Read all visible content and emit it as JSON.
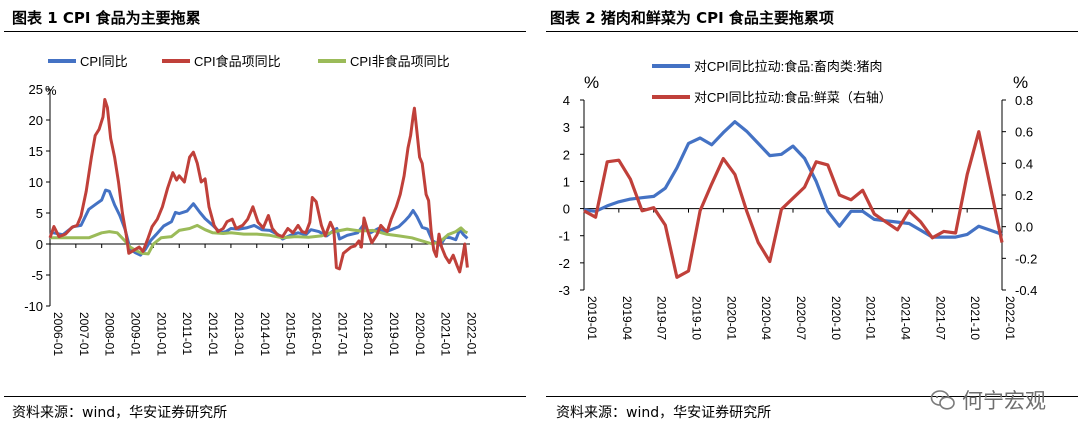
{
  "figure1": {
    "title": "图表 1 CPI 食品为主要拖累",
    "source": "资料来源：wind，华安证券研究所"
  },
  "figure2": {
    "title": "图表 2  猪肉和鲜菜为 CPI 食品主要拖累项",
    "source": "资料来源：wind，华安证券研究所"
  },
  "watermark": "何宁宏观",
  "colors": {
    "blue": "#4472C4",
    "red": "#C0403A",
    "green": "#9BBB59"
  },
  "chart_data": [
    {
      "type": "line",
      "title": "图表 1 CPI 食品为主要拖累",
      "ylabel": "%",
      "ylim": [
        -10,
        25
      ],
      "yticks": [
        -10,
        -5,
        0,
        5,
        10,
        15,
        20,
        25
      ],
      "xlim": [
        2006.0,
        2022.25
      ],
      "xticks": [
        "2006-01",
        "2007-01",
        "2008-01",
        "2009-01",
        "2010-01",
        "2011-01",
        "2012-01",
        "2013-01",
        "2014-01",
        "2015-01",
        "2016-01",
        "2017-01",
        "2018-01",
        "2019-01",
        "2020-01",
        "2021-01",
        "2022-01"
      ],
      "legend": "top",
      "series": [
        {
          "name": "CPI同比",
          "color": "blue",
          "points": [
            [
              2006.0,
              1.9
            ],
            [
              2006.5,
              1.5
            ],
            [
              2006.9,
              2.8
            ],
            [
              2007.2,
              3.0
            ],
            [
              2007.5,
              5.6
            ],
            [
              2007.8,
              6.5
            ],
            [
              2008.0,
              7.1
            ],
            [
              2008.15,
              8.7
            ],
            [
              2008.3,
              8.5
            ],
            [
              2008.5,
              6.3
            ],
            [
              2008.7,
              4.6
            ],
            [
              2008.9,
              2.4
            ],
            [
              2009.1,
              -0.8
            ],
            [
              2009.3,
              -1.4
            ],
            [
              2009.5,
              -1.8
            ],
            [
              2009.7,
              -0.8
            ],
            [
              2009.9,
              0.6
            ],
            [
              2010.1,
              1.5
            ],
            [
              2010.4,
              2.9
            ],
            [
              2010.7,
              3.6
            ],
            [
              2010.85,
              5.1
            ],
            [
              2011.0,
              4.9
            ],
            [
              2011.3,
              5.3
            ],
            [
              2011.55,
              6.5
            ],
            [
              2011.8,
              5.1
            ],
            [
              2012.0,
              4.1
            ],
            [
              2012.3,
              3.0
            ],
            [
              2012.6,
              1.8
            ],
            [
              2012.8,
              2.0
            ],
            [
              2013.0,
              2.5
            ],
            [
              2013.3,
              2.4
            ],
            [
              2013.6,
              2.6
            ],
            [
              2013.9,
              3.0
            ],
            [
              2014.2,
              2.3
            ],
            [
              2014.5,
              2.2
            ],
            [
              2014.8,
              1.6
            ],
            [
              2015.0,
              0.8
            ],
            [
              2015.3,
              1.4
            ],
            [
              2015.6,
              1.8
            ],
            [
              2015.9,
              1.5
            ],
            [
              2016.1,
              2.3
            ],
            [
              2016.4,
              2.0
            ],
            [
              2016.7,
              1.3
            ],
            [
              2016.95,
              2.1
            ],
            [
              2017.1,
              2.5
            ],
            [
              2017.2,
              0.8
            ],
            [
              2017.5,
              1.4
            ],
            [
              2017.9,
              1.8
            ],
            [
              2018.1,
              2.9
            ],
            [
              2018.4,
              1.8
            ],
            [
              2018.7,
              2.5
            ],
            [
              2018.95,
              1.9
            ],
            [
              2019.2,
              2.3
            ],
            [
              2019.5,
              2.8
            ],
            [
              2019.75,
              3.8
            ],
            [
              2019.9,
              4.5
            ],
            [
              2020.05,
              5.4
            ],
            [
              2020.2,
              4.4
            ],
            [
              2020.4,
              2.7
            ],
            [
              2020.6,
              2.4
            ],
            [
              2020.8,
              0.5
            ],
            [
              2020.95,
              0.2
            ],
            [
              2021.1,
              -0.2
            ],
            [
              2021.3,
              1.1
            ],
            [
              2021.5,
              1.0
            ],
            [
              2021.7,
              0.7
            ],
            [
              2021.85,
              2.3
            ],
            [
              2022.0,
              1.5
            ],
            [
              2022.15,
              0.9
            ]
          ]
        },
        {
          "name": "CPI食品项同比",
          "color": "red",
          "points": [
            [
              2006.0,
              1.0
            ],
            [
              2006.15,
              2.8
            ],
            [
              2006.35,
              1.2
            ],
            [
              2006.6,
              1.6
            ],
            [
              2006.85,
              2.7
            ],
            [
              2007.05,
              3.0
            ],
            [
              2007.2,
              4.5
            ],
            [
              2007.4,
              8.5
            ],
            [
              2007.6,
              14.0
            ],
            [
              2007.75,
              17.5
            ],
            [
              2007.9,
              18.5
            ],
            [
              2008.05,
              20.5
            ],
            [
              2008.12,
              23.3
            ],
            [
              2008.22,
              22.0
            ],
            [
              2008.35,
              17.0
            ],
            [
              2008.5,
              14.0
            ],
            [
              2008.65,
              10.0
            ],
            [
              2008.8,
              5.0
            ],
            [
              2008.95,
              1.5
            ],
            [
              2009.05,
              -1.5
            ],
            [
              2009.25,
              -1.0
            ],
            [
              2009.45,
              -0.5
            ],
            [
              2009.6,
              -1.2
            ],
            [
              2009.8,
              1.0
            ],
            [
              2009.95,
              2.8
            ],
            [
              2010.15,
              4.0
            ],
            [
              2010.35,
              6.0
            ],
            [
              2010.55,
              9.0
            ],
            [
              2010.75,
              11.5
            ],
            [
              2010.9,
              10.3
            ],
            [
              2011.0,
              11.0
            ],
            [
              2011.2,
              10.0
            ],
            [
              2011.4,
              14.0
            ],
            [
              2011.55,
              14.8
            ],
            [
              2011.7,
              13.0
            ],
            [
              2011.85,
              10.0
            ],
            [
              2012.0,
              10.5
            ],
            [
              2012.15,
              6.0
            ],
            [
              2012.35,
              3.0
            ],
            [
              2012.5,
              2.0
            ],
            [
              2012.7,
              2.5
            ],
            [
              2012.85,
              3.6
            ],
            [
              2013.05,
              4.0
            ],
            [
              2013.2,
              2.5
            ],
            [
              2013.45,
              3.0
            ],
            [
              2013.65,
              4.0
            ],
            [
              2013.85,
              6.0
            ],
            [
              2014.05,
              3.5
            ],
            [
              2014.25,
              2.6
            ],
            [
              2014.45,
              4.6
            ],
            [
              2014.6,
              2.5
            ],
            [
              2014.8,
              1.5
            ],
            [
              2015.0,
              1.2
            ],
            [
              2015.2,
              2.5
            ],
            [
              2015.4,
              1.8
            ],
            [
              2015.6,
              3.0
            ],
            [
              2015.75,
              2.0
            ],
            [
              2015.9,
              1.8
            ],
            [
              2016.05,
              3.5
            ],
            [
              2016.15,
              7.5
            ],
            [
              2016.3,
              6.8
            ],
            [
              2016.5,
              3.0
            ],
            [
              2016.65,
              1.3
            ],
            [
              2016.85,
              3.5
            ],
            [
              2016.98,
              2.3
            ],
            [
              2017.08,
              -3.8
            ],
            [
              2017.2,
              -4.0
            ],
            [
              2017.35,
              -1.5
            ],
            [
              2017.5,
              -1.0
            ],
            [
              2017.65,
              -0.5
            ],
            [
              2017.8,
              -0.3
            ],
            [
              2017.95,
              0.5
            ],
            [
              2018.05,
              -0.5
            ],
            [
              2018.15,
              4.2
            ],
            [
              2018.3,
              2.0
            ],
            [
              2018.45,
              0.2
            ],
            [
              2018.65,
              1.5
            ],
            [
              2018.8,
              3.0
            ],
            [
              2018.95,
              2.3
            ],
            [
              2019.05,
              2.0
            ],
            [
              2019.2,
              4.0
            ],
            [
              2019.4,
              6.0
            ],
            [
              2019.55,
              8.0
            ],
            [
              2019.7,
              11.0
            ],
            [
              2019.85,
              15.5
            ],
            [
              2019.95,
              17.5
            ],
            [
              2020.05,
              20.6
            ],
            [
              2020.1,
              21.9
            ],
            [
              2020.2,
              18.0
            ],
            [
              2020.3,
              14.0
            ],
            [
              2020.4,
              13.0
            ],
            [
              2020.55,
              8.0
            ],
            [
              2020.65,
              7.0
            ],
            [
              2020.75,
              2.0
            ],
            [
              2020.85,
              -1.0
            ],
            [
              2020.95,
              -2.0
            ],
            [
              2021.05,
              1.6
            ],
            [
              2021.15,
              -0.5
            ],
            [
              2021.3,
              -2.0
            ],
            [
              2021.45,
              -3.0
            ],
            [
              2021.6,
              -1.8
            ],
            [
              2021.75,
              -3.5
            ],
            [
              2021.85,
              -4.5
            ],
            [
              2021.95,
              -2.5
            ],
            [
              2022.05,
              0.0
            ],
            [
              2022.15,
              -3.8
            ]
          ]
        },
        {
          "name": "CPI非食品项同比",
          "color": "green",
          "points": [
            [
              2006.0,
              1.0
            ],
            [
              2006.5,
              1.0
            ],
            [
              2007.0,
              1.0
            ],
            [
              2007.5,
              1.0
            ],
            [
              2008.0,
              1.8
            ],
            [
              2008.3,
              2.0
            ],
            [
              2008.6,
              1.8
            ],
            [
              2008.9,
              0.5
            ],
            [
              2009.1,
              -0.5
            ],
            [
              2009.3,
              -1.0
            ],
            [
              2009.55,
              -1.5
            ],
            [
              2009.8,
              -1.6
            ],
            [
              2010.0,
              0.0
            ],
            [
              2010.3,
              1.0
            ],
            [
              2010.7,
              1.2
            ],
            [
              2011.0,
              2.2
            ],
            [
              2011.4,
              2.5
            ],
            [
              2011.7,
              3.0
            ],
            [
              2012.0,
              2.3
            ],
            [
              2012.3,
              1.8
            ],
            [
              2012.7,
              1.7
            ],
            [
              2013.0,
              1.8
            ],
            [
              2013.5,
              1.6
            ],
            [
              2014.0,
              1.6
            ],
            [
              2014.5,
              1.4
            ],
            [
              2015.0,
              1.0
            ],
            [
              2015.5,
              1.2
            ],
            [
              2016.0,
              1.1
            ],
            [
              2016.5,
              1.3
            ],
            [
              2017.0,
              2.0
            ],
            [
              2017.5,
              2.4
            ],
            [
              2018.0,
              2.1
            ],
            [
              2018.5,
              2.2
            ],
            [
              2019.0,
              1.6
            ],
            [
              2019.5,
              1.3
            ],
            [
              2020.0,
              1.0
            ],
            [
              2020.4,
              0.5
            ],
            [
              2020.8,
              0.0
            ],
            [
              2021.1,
              0.4
            ],
            [
              2021.4,
              1.5
            ],
            [
              2021.7,
              2.0
            ],
            [
              2021.9,
              2.6
            ],
            [
              2022.05,
              2.0
            ],
            [
              2022.15,
              1.8
            ]
          ]
        }
      ]
    },
    {
      "type": "line",
      "title": "图表 2  猪肉和鲜菜为 CPI 食品主要拖累项",
      "ylabel": "%",
      "y2label": "%",
      "ylim": [
        -3,
        4
      ],
      "yticks": [
        -3,
        -2,
        -1,
        0,
        1,
        2,
        3,
        4
      ],
      "y2lim": [
        -0.4,
        0.8
      ],
      "y2ticks": [
        "-0.4",
        "-0.2",
        "0.0",
        "0.2",
        "0.4",
        "0.6",
        "0.8"
      ],
      "xlim": [
        0,
        36
      ],
      "xticks": [
        "2019-01",
        "2019-04",
        "2019-07",
        "2019-10",
        "2020-01",
        "2020-04",
        "2020-07",
        "2020-10",
        "2021-01",
        "2021-04",
        "2021-07",
        "2021-10",
        "2022-01"
      ],
      "legend": "top-left",
      "series": [
        {
          "name": "对CPI同比拉动:食品:畜肉类:猪肉",
          "color": "blue",
          "axis": "left",
          "values": [
            -0.05,
            -0.1,
            0.1,
            0.25,
            0.35,
            0.4,
            0.45,
            0.75,
            1.5,
            2.4,
            2.6,
            2.35,
            2.8,
            3.2,
            2.85,
            2.4,
            1.95,
            2.0,
            2.3,
            1.85,
            1.0,
            -0.1,
            -0.65,
            -0.1,
            -0.1,
            -0.4,
            -0.45,
            -0.5,
            -0.55,
            -0.8,
            -1.05,
            -1.05,
            -1.05,
            -0.95,
            -0.65,
            -0.8,
            -0.95
          ]
        },
        {
          "name": "对CPI同比拉动:食品:鲜菜（右轴）",
          "color": "red",
          "axis": "right",
          "values": [
            0.1,
            0.06,
            0.41,
            0.42,
            0.3,
            0.1,
            0.12,
            0.01,
            -0.32,
            -0.28,
            0.1,
            0.27,
            0.43,
            0.33,
            0.1,
            -0.1,
            -0.22,
            0.11,
            0.18,
            0.25,
            0.41,
            0.39,
            0.2,
            0.17,
            0.23,
            0.08,
            0.03,
            -0.02,
            0.1,
            0.03,
            -0.07,
            -0.03,
            -0.04,
            0.33,
            0.6,
            0.25,
            -0.1
          ]
        }
      ]
    }
  ]
}
